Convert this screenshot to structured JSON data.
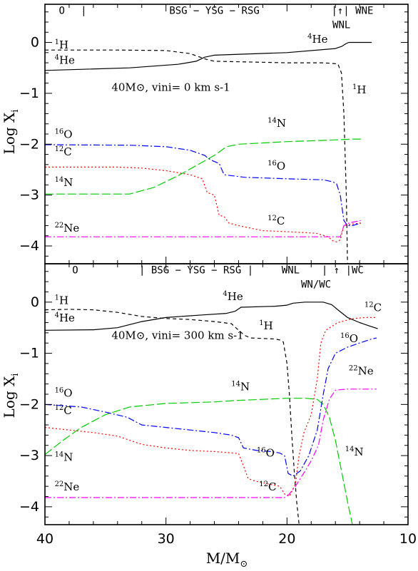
{
  "chart_data": [
    {
      "type": "line",
      "panel": "top",
      "xlabel": "M/M⊙",
      "ylabel": "Log Xi",
      "xlim": [
        40,
        10
      ],
      "ylim": [
        -4.35,
        0.75
      ],
      "model_label": "40M⊙, vini= 0 km s-1",
      "phases": [
        {
          "text": "O",
          "x": 38.6
        },
        {
          "text": "|",
          "x": 36.8
        },
        {
          "text": "BSG − YSG − RSG",
          "x": 26.0
        },
        {
          "text": "|↑| WNE",
          "x": 14.6
        },
        {
          "text": "WNL",
          "x": 15.5
        }
      ],
      "series": [
        {
          "name": "1H",
          "color": "#000000",
          "dash": "5,4",
          "points": [
            [
              40,
              -0.15
            ],
            [
              34,
              -0.15
            ],
            [
              30,
              -0.16
            ],
            [
              28,
              -0.22
            ],
            [
              26.7,
              -0.33
            ],
            [
              26,
              -0.37
            ],
            [
              20,
              -0.4
            ],
            [
              17,
              -0.4
            ],
            [
              15.8,
              -0.42
            ],
            [
              15.5,
              -0.6
            ],
            [
              15.3,
              -1.4
            ],
            [
              15.1,
              -3.0
            ],
            [
              15.0,
              -4.35
            ]
          ]
        },
        {
          "name": "4He",
          "color": "#000000",
          "dash": "",
          "points": [
            [
              40,
              -0.55
            ],
            [
              33,
              -0.5
            ],
            [
              29,
              -0.43
            ],
            [
              27.5,
              -0.37
            ],
            [
              26.8,
              -0.29
            ],
            [
              26,
              -0.25
            ],
            [
              20,
              -0.2
            ],
            [
              16,
              -0.12
            ],
            [
              15.5,
              -0.08
            ],
            [
              15.1,
              -0.02
            ],
            [
              14.9,
              0.0
            ],
            [
              13,
              0.0
            ]
          ]
        },
        {
          "name": "12C",
          "color": "#ff0000",
          "dash": "2,3",
          "points": [
            [
              40,
              -2.45
            ],
            [
              34,
              -2.45
            ],
            [
              32,
              -2.47
            ],
            [
              30,
              -2.52
            ],
            [
              28,
              -2.6
            ],
            [
              27,
              -2.68
            ],
            [
              26.6,
              -2.95
            ],
            [
              26,
              -3.0
            ],
            [
              25.6,
              -3.4
            ],
            [
              25.2,
              -3.42
            ],
            [
              24.8,
              -3.55
            ],
            [
              24,
              -3.6
            ],
            [
              22,
              -3.7
            ],
            [
              20,
              -3.72
            ],
            [
              17.6,
              -3.75
            ],
            [
              16.6,
              -3.82
            ],
            [
              16.2,
              -3.9
            ],
            [
              15.9,
              -3.92
            ],
            [
              15.6,
              -3.88
            ],
            [
              15.3,
              -3.6
            ],
            [
              14.9,
              -3.58
            ],
            [
              13.9,
              -3.55
            ]
          ]
        },
        {
          "name": "14N",
          "color": "#00cc00",
          "dash": "12,4",
          "points": [
            [
              40,
              -2.98
            ],
            [
              33,
              -2.98
            ],
            [
              31,
              -2.85
            ],
            [
              29,
              -2.62
            ],
            [
              27.5,
              -2.42
            ],
            [
              26,
              -2.22
            ],
            [
              25,
              -2.05
            ],
            [
              24,
              -2.0
            ],
            [
              20,
              -1.95
            ],
            [
              16.5,
              -1.92
            ],
            [
              14.5,
              -1.9
            ],
            [
              13.9,
              -1.9
            ]
          ]
        },
        {
          "name": "16O",
          "color": "#0000ff",
          "dash": "9,3,2,3",
          "points": [
            [
              40,
              -2.01
            ],
            [
              33,
              -2.02
            ],
            [
              30,
              -2.05
            ],
            [
              28,
              -2.12
            ],
            [
              26.8,
              -2.22
            ],
            [
              26.5,
              -2.28
            ],
            [
              26.1,
              -2.33
            ],
            [
              25.6,
              -2.38
            ],
            [
              25.2,
              -2.6
            ],
            [
              23.5,
              -2.65
            ],
            [
              20,
              -2.68
            ],
            [
              17,
              -2.7
            ],
            [
              16.2,
              -2.74
            ],
            [
              15.9,
              -2.78
            ],
            [
              15.6,
              -3.0
            ],
            [
              15.3,
              -3.5
            ],
            [
              15.0,
              -3.6
            ],
            [
              14.6,
              -3.6
            ],
            [
              13.9,
              -3.55
            ]
          ]
        },
        {
          "name": "22Ne",
          "color": "#ff00ff",
          "dash": "9,3,2,3",
          "points": [
            [
              40,
              -3.82
            ],
            [
              16,
              -3.82
            ],
            [
              15.6,
              -3.82
            ],
            [
              15.3,
              -3.6
            ],
            [
              14.9,
              -3.55
            ],
            [
              13.9,
              -3.5
            ]
          ]
        }
      ]
    },
    {
      "type": "line",
      "panel": "bottom",
      "xlabel": "M/M⊙",
      "ylabel": "Log Xi",
      "xlim": [
        40,
        10
      ],
      "ylim": [
        -4.35,
        0.75
      ],
      "xticks": [
        40,
        30,
        20,
        10
      ],
      "yticks": [
        0,
        -1,
        -2,
        -3,
        -4
      ],
      "model_label": "40M⊙, vini= 300 km s-1",
      "phases": [
        {
          "text": "O",
          "x": 37.5
        },
        {
          "text": "| BSG − YSG − RSG |",
          "x": 27.5
        },
        {
          "text": "WNL",
          "x": 19.7
        },
        {
          "text": "| ↑ |WC",
          "x": 15.4
        },
        {
          "text": "WN/WC",
          "x": 17.6
        }
      ],
      "series": [
        {
          "name": "1H",
          "color": "#000000",
          "dash": "5,4",
          "points": [
            [
              40,
              -0.15
            ],
            [
              38,
              -0.14
            ],
            [
              36,
              -0.15
            ],
            [
              34,
              -0.2
            ],
            [
              32,
              -0.28
            ],
            [
              30,
              -0.32
            ],
            [
              28,
              -0.34
            ],
            [
              26,
              -0.38
            ],
            [
              24.6,
              -0.42
            ],
            [
              24,
              -0.55
            ],
            [
              23.5,
              -0.65
            ],
            [
              23,
              -0.7
            ],
            [
              21,
              -0.72
            ],
            [
              20.6,
              -0.74
            ],
            [
              20.3,
              -0.78
            ],
            [
              20.0,
              -1.2
            ],
            [
              19.8,
              -1.8
            ],
            [
              19.6,
              -2.6
            ],
            [
              19.4,
              -3.3
            ],
            [
              19.2,
              -3.9
            ],
            [
              19.0,
              -4.35
            ]
          ]
        },
        {
          "name": "4He",
          "color": "#000000",
          "dash": "",
          "points": [
            [
              40,
              -0.55
            ],
            [
              36,
              -0.54
            ],
            [
              34,
              -0.5
            ],
            [
              32,
              -0.38
            ],
            [
              30,
              -0.3
            ],
            [
              27,
              -0.25
            ],
            [
              25,
              -0.22
            ],
            [
              24.3,
              -0.18
            ],
            [
              23.8,
              -0.1
            ],
            [
              21,
              -0.08
            ],
            [
              20,
              -0.06
            ],
            [
              19.5,
              -0.02
            ],
            [
              18.5,
              0.0
            ],
            [
              17,
              0.0
            ],
            [
              16.3,
              -0.05
            ],
            [
              15.8,
              -0.15
            ],
            [
              15,
              -0.3
            ],
            [
              14,
              -0.4
            ],
            [
              13,
              -0.48
            ],
            [
              12.5,
              -0.52
            ]
          ]
        },
        {
          "name": "12C",
          "color": "#ff0000",
          "dash": "2,3",
          "points": [
            [
              40,
              -2.45
            ],
            [
              38,
              -2.5
            ],
            [
              36,
              -2.55
            ],
            [
              34,
              -2.62
            ],
            [
              32,
              -2.78
            ],
            [
              30,
              -2.85
            ],
            [
              28,
              -2.9
            ],
            [
              26,
              -2.92
            ],
            [
              24,
              -2.96
            ],
            [
              23.6,
              -3.2
            ],
            [
              23.2,
              -3.45
            ],
            [
              22.6,
              -3.5
            ],
            [
              20.6,
              -3.6
            ],
            [
              20.2,
              -3.75
            ],
            [
              19.8,
              -3.8
            ],
            [
              19.3,
              -3.55
            ],
            [
              19.0,
              -3.0
            ],
            [
              18.6,
              -2.55
            ],
            [
              18.0,
              -2.2
            ],
            [
              17.5,
              -1.5
            ],
            [
              17.2,
              -0.8
            ],
            [
              16.8,
              -0.55
            ],
            [
              15.8,
              -0.4
            ],
            [
              14.5,
              -0.32
            ],
            [
              13.5,
              -0.3
            ],
            [
              12.6,
              -0.3
            ]
          ]
        },
        {
          "name": "14N",
          "color": "#00cc00",
          "dash": "12,4",
          "points": [
            [
              40,
              -2.98
            ],
            [
              38.5,
              -2.7
            ],
            [
              37,
              -2.45
            ],
            [
              35,
              -2.2
            ],
            [
              33,
              -2.05
            ],
            [
              30,
              -1.98
            ],
            [
              26,
              -1.95
            ],
            [
              24,
              -1.92
            ],
            [
              22,
              -1.9
            ],
            [
              20,
              -1.88
            ],
            [
              18.5,
              -1.88
            ],
            [
              17.5,
              -1.9
            ],
            [
              17.0,
              -2.0
            ],
            [
              16.5,
              -2.25
            ],
            [
              16.0,
              -2.7
            ],
            [
              15.5,
              -3.3
            ],
            [
              15.0,
              -3.9
            ],
            [
              14.6,
              -4.35
            ]
          ]
        },
        {
          "name": "16O",
          "color": "#0000ff",
          "dash": "9,3,2,3",
          "points": [
            [
              40,
              -2.0
            ],
            [
              37,
              -2.05
            ],
            [
              35,
              -2.15
            ],
            [
              33.2,
              -2.25
            ],
            [
              32.4,
              -2.35
            ],
            [
              32,
              -2.4
            ],
            [
              30,
              -2.45
            ],
            [
              28,
              -2.5
            ],
            [
              26,
              -2.55
            ],
            [
              24.6,
              -2.6
            ],
            [
              24.0,
              -2.65
            ],
            [
              23.6,
              -2.85
            ],
            [
              22.5,
              -2.9
            ],
            [
              21.3,
              -2.92
            ],
            [
              20.6,
              -2.95
            ],
            [
              20.2,
              -3.0
            ],
            [
              19.9,
              -3.35
            ],
            [
              19.5,
              -3.4
            ],
            [
              18.9,
              -3.3
            ],
            [
              18.2,
              -3.0
            ],
            [
              17.5,
              -2.5
            ],
            [
              17.0,
              -1.8
            ],
            [
              16.6,
              -1.3
            ],
            [
              16.0,
              -1.0
            ],
            [
              15.0,
              -0.88
            ],
            [
              14,
              -0.8
            ],
            [
              13,
              -0.72
            ],
            [
              12.6,
              -0.7
            ]
          ]
        },
        {
          "name": "22Ne",
          "color": "#ff00ff",
          "dash": "9,3,2,3",
          "points": [
            [
              40,
              -3.82
            ],
            [
              30,
              -3.82
            ],
            [
              21,
              -3.82
            ],
            [
              20.2,
              -3.82
            ],
            [
              19.8,
              -3.75
            ],
            [
              19.3,
              -3.6
            ],
            [
              18.5,
              -3.3
            ],
            [
              18.0,
              -3.1
            ],
            [
              17.4,
              -2.8
            ],
            [
              17.0,
              -2.3
            ],
            [
              16.5,
              -1.9
            ],
            [
              16.0,
              -1.72
            ],
            [
              15,
              -1.7
            ],
            [
              12.6,
              -1.7
            ]
          ]
        }
      ]
    }
  ],
  "labels": {
    "top": {
      "H1": {
        "text": "H",
        "mass": "1"
      },
      "He4_left": {
        "text": "He",
        "mass": "4"
      },
      "He4_right": {
        "text": "He",
        "mass": "4"
      },
      "H1_right": {
        "text": "H",
        "mass": "1"
      },
      "O16_left": {
        "text": "O",
        "mass": "16"
      },
      "C12_left": {
        "text": "C",
        "mass": "12"
      },
      "N14_left": {
        "text": "N",
        "mass": "14"
      },
      "N14_mid": {
        "text": "N",
        "mass": "14"
      },
      "O16_mid": {
        "text": "O",
        "mass": "16"
      },
      "C12_mid": {
        "text": "C",
        "mass": "12"
      },
      "Ne22_left": {
        "text": "Ne",
        "mass": "22"
      }
    },
    "bottom": {
      "H1": {
        "text": "H",
        "mass": "1"
      },
      "He4_left": {
        "text": "He",
        "mass": "4"
      },
      "He4_mid": {
        "text": "He",
        "mass": "4"
      },
      "H1_mid": {
        "text": "H",
        "mass": "1"
      },
      "C12_right": {
        "text": "C",
        "mass": "12"
      },
      "O16_right": {
        "text": "O",
        "mass": "16"
      },
      "Ne22_right": {
        "text": "Ne",
        "mass": "22"
      },
      "N14_mid": {
        "text": "N",
        "mass": "14"
      },
      "O16_left": {
        "text": "O",
        "mass": "16"
      },
      "C12_left": {
        "text": "C",
        "mass": "12"
      },
      "N14_left": {
        "text": "N",
        "mass": "14"
      },
      "O16_mid": {
        "text": "O",
        "mass": "16"
      },
      "C12_mid": {
        "text": "C",
        "mass": "12"
      },
      "N14_right": {
        "text": "N",
        "mass": "14"
      },
      "Ne22_left": {
        "text": "Ne",
        "mass": "22"
      }
    }
  }
}
